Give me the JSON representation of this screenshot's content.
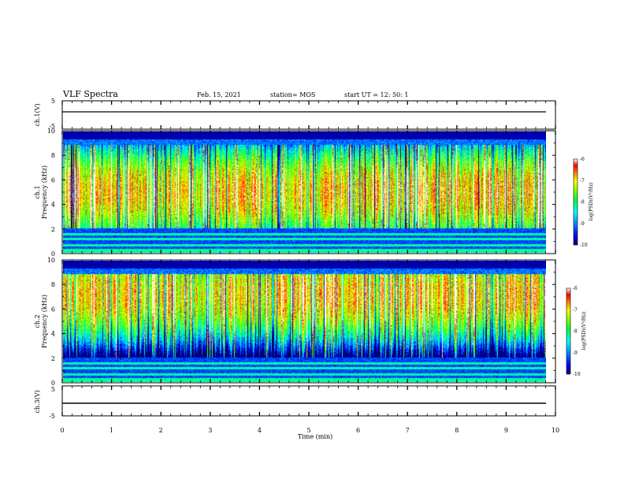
{
  "header": {
    "title": "VLF Spectra",
    "date": "Feb. 15, 2021",
    "station": "station= MOS",
    "start": "start  UT  =   12: 50: 1"
  },
  "colors": {
    "scale": [
      "#000080",
      "#0000ff",
      "#00a0ff",
      "#00ffff",
      "#00ff40",
      "#80ff00",
      "#ffff00",
      "#ff8000",
      "#ff0000",
      "#ffffff"
    ],
    "background": "#ffffff",
    "frame": "#000000"
  },
  "chart_data": [
    {
      "type": "line",
      "panel": "ch1-waveform",
      "ylabel": "ch.1(V)",
      "yticks": [
        "5",
        "-5"
      ],
      "ylim": [
        -5,
        5
      ],
      "xlim": [
        0,
        10
      ],
      "level": -2
    },
    {
      "type": "heatmap",
      "panel": "ch1-spectrogram",
      "ylabel": "ch.1\nFrequency (kHz)",
      "yticks": [
        "0",
        "2",
        "4",
        "6",
        "8",
        "10"
      ],
      "ylim": [
        0,
        10
      ],
      "xlim": [
        0,
        10
      ],
      "data_end_min": 9.85,
      "band_center_khz": 5.0,
      "noise_floor_khz": 2.0,
      "colorbar": {
        "label": "log(PSD)(V²/Hz)",
        "ticks": [
          "-6",
          "-7",
          "-8",
          "-9",
          "-10"
        ],
        "range": [
          -10,
          -6
        ]
      }
    },
    {
      "type": "heatmap",
      "panel": "ch2-spectrogram",
      "ylabel": "ch.2\nFrequency (kHz)",
      "yticks": [
        "0",
        "2",
        "4",
        "6",
        "8",
        "10"
      ],
      "ylim": [
        0,
        10
      ],
      "xlim": [
        0,
        10
      ],
      "data_end_min": 9.85,
      "band_center_khz": 7.2,
      "noise_floor_khz": 2.0,
      "colorbar": {
        "label": "log(PSD)(V²/Hz)",
        "ticks": [
          "-6",
          "-7",
          "-8",
          "-9",
          "-10"
        ],
        "range": [
          -10,
          -6
        ]
      }
    },
    {
      "type": "line",
      "panel": "ch3-waveform",
      "ylabel": "ch.3(V)",
      "yticks": [
        "5",
        "-5"
      ],
      "ylim": [
        -5,
        5
      ],
      "xlim": [
        0,
        10
      ],
      "level": -2
    }
  ],
  "xaxis": {
    "label": "Time  (min)",
    "ticks": [
      "0",
      "1",
      "2",
      "3",
      "4",
      "5",
      "6",
      "7",
      "8",
      "9",
      "10"
    ]
  }
}
